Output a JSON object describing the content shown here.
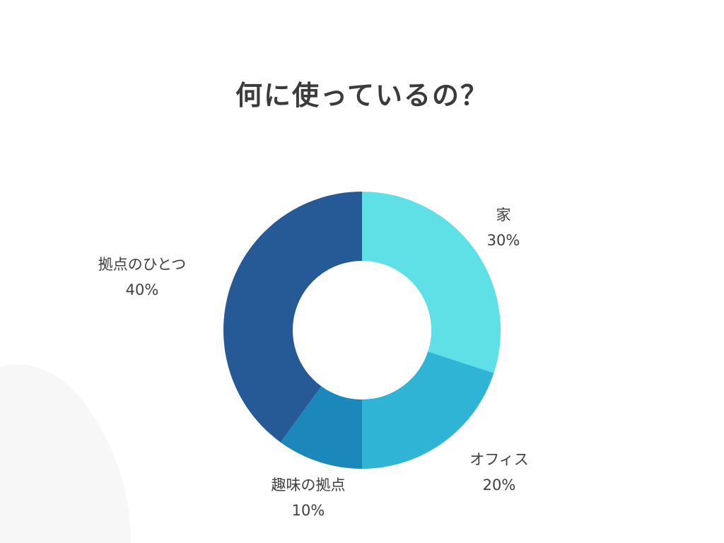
{
  "colors": {
    "background": "#ffffff",
    "background_shape": "#f7f7f7",
    "title": "#3b3b3b",
    "label": "#3f3f3f"
  },
  "chart_data": {
    "type": "pie",
    "variant": "donut",
    "title": "何に使っているの？",
    "start_angle_deg": 0,
    "direction": "clockwise",
    "hole_ratio": 0.5,
    "legend": "none",
    "slices": [
      {
        "label": "家",
        "value": 30,
        "value_label": "30%",
        "color": "#5fe0e6"
      },
      {
        "label": "オフィス",
        "value": 20,
        "value_label": "20%",
        "color": "#2fb4d6"
      },
      {
        "label": "趣味の拠点",
        "value": 10,
        "value_label": "10%",
        "color": "#1c87bb"
      },
      {
        "label": "拠点のひとつ",
        "value": 40,
        "value_label": "40%",
        "color": "#265a96"
      }
    ]
  }
}
